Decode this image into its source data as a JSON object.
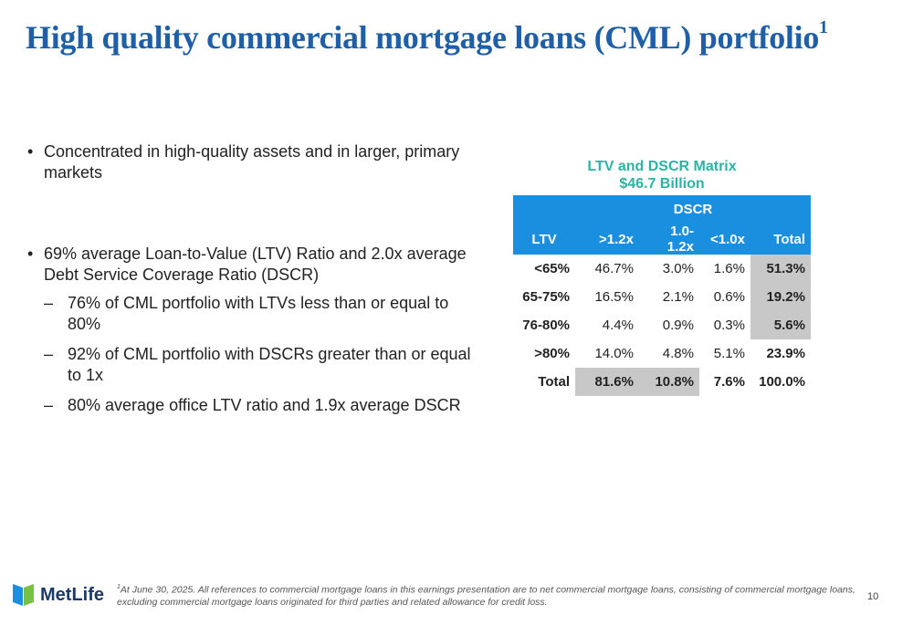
{
  "slide": {
    "title": "High quality commercial mortgage loans (CML) portfolio",
    "title_sup": "1",
    "page_number": "10"
  },
  "bullets": {
    "b1": "Concentrated in high-quality assets and in larger, primary markets",
    "b2": "69% average Loan-to-Value (LTV) Ratio and 2.0x average Debt Service Coverage Ratio (DSCR)",
    "subs": [
      "76% of CML portfolio with LTVs less than or equal to 80%",
      "92% of CML portfolio with DSCRs greater than or equal to 1x",
      "80% average office LTV ratio and 1.9x average DSCR"
    ]
  },
  "matrix": {
    "title_line1": "LTV and DSCR Matrix",
    "title_line2": "$46.7 Billion",
    "dscr_header": "DSCR",
    "columns": [
      "LTV",
      ">1.2x",
      "1.0-1.2x",
      "<1.0x",
      "Total"
    ],
    "rows": [
      {
        "ltv": "<65%",
        "v1": "46.7%",
        "v2": "3.0%",
        "v3": "1.6%",
        "total": "51.3%"
      },
      {
        "ltv": "65-75%",
        "v1": "16.5%",
        "v2": "2.1%",
        "v3": "0.6%",
        "total": "19.2%"
      },
      {
        "ltv": "76-80%",
        "v1": "4.4%",
        "v2": "0.9%",
        "v3": "0.3%",
        "total": "5.6%"
      },
      {
        "ltv": ">80%",
        "v1": "14.0%",
        "v2": "4.8%",
        "v3": "5.1%",
        "total": "23.9%"
      },
      {
        "ltv": "Total",
        "v1": "81.6%",
        "v2": "10.8%",
        "v3": "7.6%",
        "total": "100.0%"
      }
    ]
  },
  "footer": {
    "logo_text": "MetLife",
    "footnote_sup": "1",
    "footnote": "At June 30, 2025. All references to commercial mortgage loans in this earnings presentation are to net commercial mortgage loans, consisting of commercial mortgage loans, excluding commercial mortgage loans originated for third parties and related allowance for credit loss."
  },
  "colors": {
    "title": "#1f5fa8",
    "matrix_title": "#2bb3a3",
    "table_header": "#1a8fe0",
    "shade": "#c8c8c8"
  }
}
